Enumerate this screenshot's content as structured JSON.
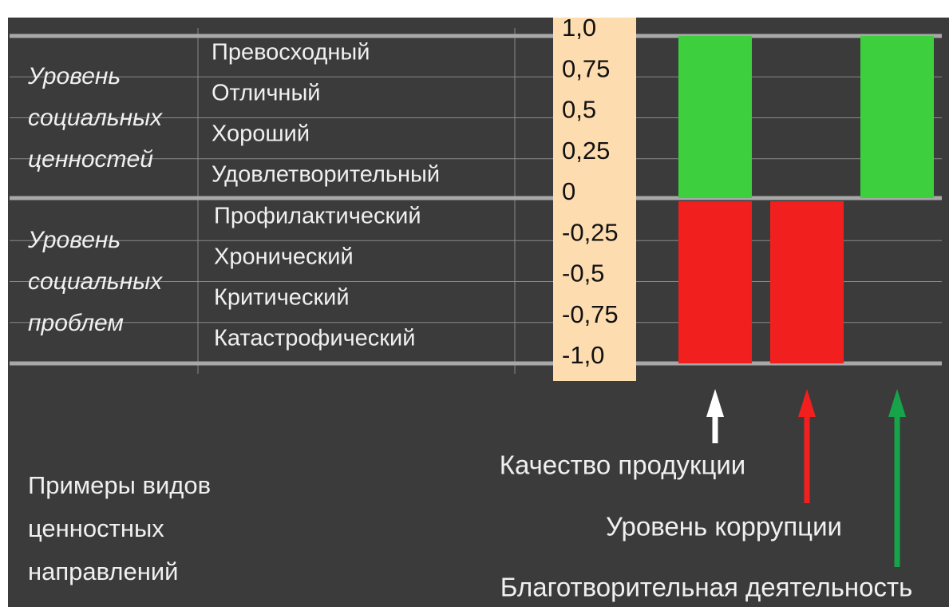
{
  "scale": [
    {
      "value": 1,
      "label": "1,0"
    },
    {
      "value": 0.75,
      "label": "0,75"
    },
    {
      "value": 0.5,
      "label": "0,5"
    },
    {
      "value": 0.25,
      "label": "0,25"
    },
    0,
    {
      "value": -0.25,
      "label": "-0,25"
    },
    {
      "value": -0.5,
      "label": "-0,5"
    },
    {
      "value": -0.75,
      "label": "-0,75"
    },
    {
      "value": -1,
      "label": "-1,0"
    }
  ],
  "groups": [
    {
      "label": [
        "Уровень",
        "социальных",
        "ценностей"
      ],
      "levels": [
        "Превосходный",
        "Отличный",
        "Хороший",
        "Удовлетворительный"
      ]
    },
    {
      "label": [
        "Уровень",
        "социальных",
        "проблем"
      ],
      "levels": [
        "Профилактический",
        "Хронический",
        "Критический",
        "Катастрофический"
      ]
    }
  ],
  "bars": [
    {
      "name": "Качество продукции",
      "arrow_color": "#ffffff",
      "segments": [
        {
          "value": 1,
          "color": "#3ecf3e"
        },
        {
          "value": -1,
          "color": "#f21f1f"
        }
      ]
    },
    {
      "name": "Уровень коррупции",
      "arrow_color": "#f21f1f",
      "segments": [
        {
          "value": -1,
          "color": "#f21f1f"
        }
      ]
    },
    {
      "name": "Благотворительная деятельность",
      "arrow_color": "#17a34a",
      "segments": [
        {
          "value": 1,
          "color": "#3ecf3e"
        }
      ]
    }
  ],
  "examples_label": [
    "Примеры видов",
    "ценностных",
    "направлений"
  ]
}
